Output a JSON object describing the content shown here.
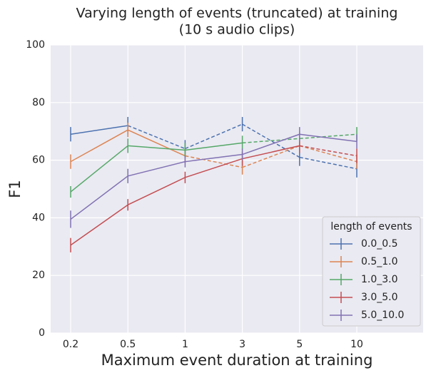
{
  "chart_data": {
    "type": "line",
    "title": [
      "Varying length of events (truncated) at training",
      "(10 s audio clips)"
    ],
    "x_label": "Maximum event duration at training",
    "y_label": "F1",
    "categories": [
      "0.2",
      "0.5",
      "1",
      "3",
      "5",
      "10"
    ],
    "ylim": [
      0,
      100
    ],
    "yticks": [
      0,
      20,
      40,
      60,
      80,
      100
    ],
    "grid": true,
    "legend_title": "length of events",
    "legend_position": "lower right",
    "series": [
      {
        "name": "0.0_0.5",
        "color": "#4c72b0",
        "values": [
          69,
          72,
          64,
          72.5,
          61,
          57
        ],
        "errors": [
          2.5,
          3,
          3,
          2.5,
          3,
          3
        ],
        "dashed_from_category": "0.5"
      },
      {
        "name": "0.5_1.0",
        "color": "#dd8452",
        "values": [
          59.5,
          70.5,
          61.5,
          57.5,
          65,
          59.5
        ],
        "errors": [
          2.5,
          2.5,
          2.5,
          2.5,
          2.5,
          2.5
        ],
        "dashed_from_category": "1"
      },
      {
        "name": "1.0_3.0",
        "color": "#55a868",
        "values": [
          49,
          65,
          63.5,
          66,
          67.5,
          69
        ],
        "errors": [
          2,
          2.5,
          2.5,
          2.5,
          2.5,
          2.5
        ],
        "dashed_from_category": "3"
      },
      {
        "name": "3.0_5.0",
        "color": "#c44e52",
        "values": [
          30.5,
          44.5,
          54,
          60.5,
          65,
          61.5
        ],
        "errors": [
          2.5,
          2,
          2,
          2.5,
          2.5,
          2.5
        ],
        "dashed_from_category": "5"
      },
      {
        "name": "5.0_10.0",
        "color": "#8172b3",
        "values": [
          39.5,
          54.5,
          59.5,
          62,
          69,
          66.5
        ],
        "errors": [
          3,
          2.5,
          2,
          2,
          2.5,
          2.5
        ]
      }
    ]
  }
}
